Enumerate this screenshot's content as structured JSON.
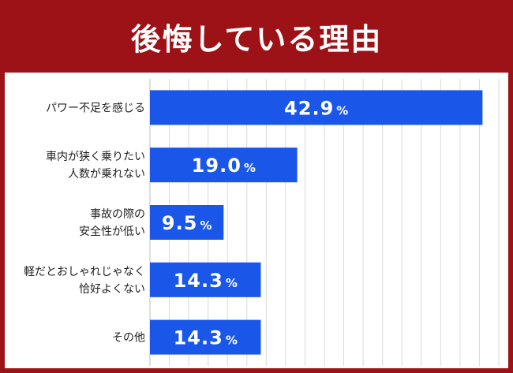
{
  "title": "後悔している理由",
  "colors": {
    "header_bg": "#9c1216",
    "bar": "#1a56e8",
    "grid": "#d9d9d9"
  },
  "chart_data": {
    "type": "bar",
    "orientation": "horizontal",
    "title": "後悔している理由",
    "unit": "%",
    "categories": [
      [
        "パワー不足を感じる"
      ],
      [
        "車内が狭く乗りたい",
        "人数が乗れない"
      ],
      [
        "事故の際の",
        "安全性が低い"
      ],
      [
        "軽だとおしゃれじゃなく",
        "恰好よくない"
      ],
      [
        "その他"
      ]
    ],
    "values": [
      42.9,
      19.0,
      9.5,
      14.3,
      14.3
    ],
    "value_labels": [
      "42.9",
      "19.0",
      "9.5",
      "14.3",
      "14.3"
    ],
    "xlim": [
      0,
      45
    ],
    "grid": true,
    "legend": false
  }
}
